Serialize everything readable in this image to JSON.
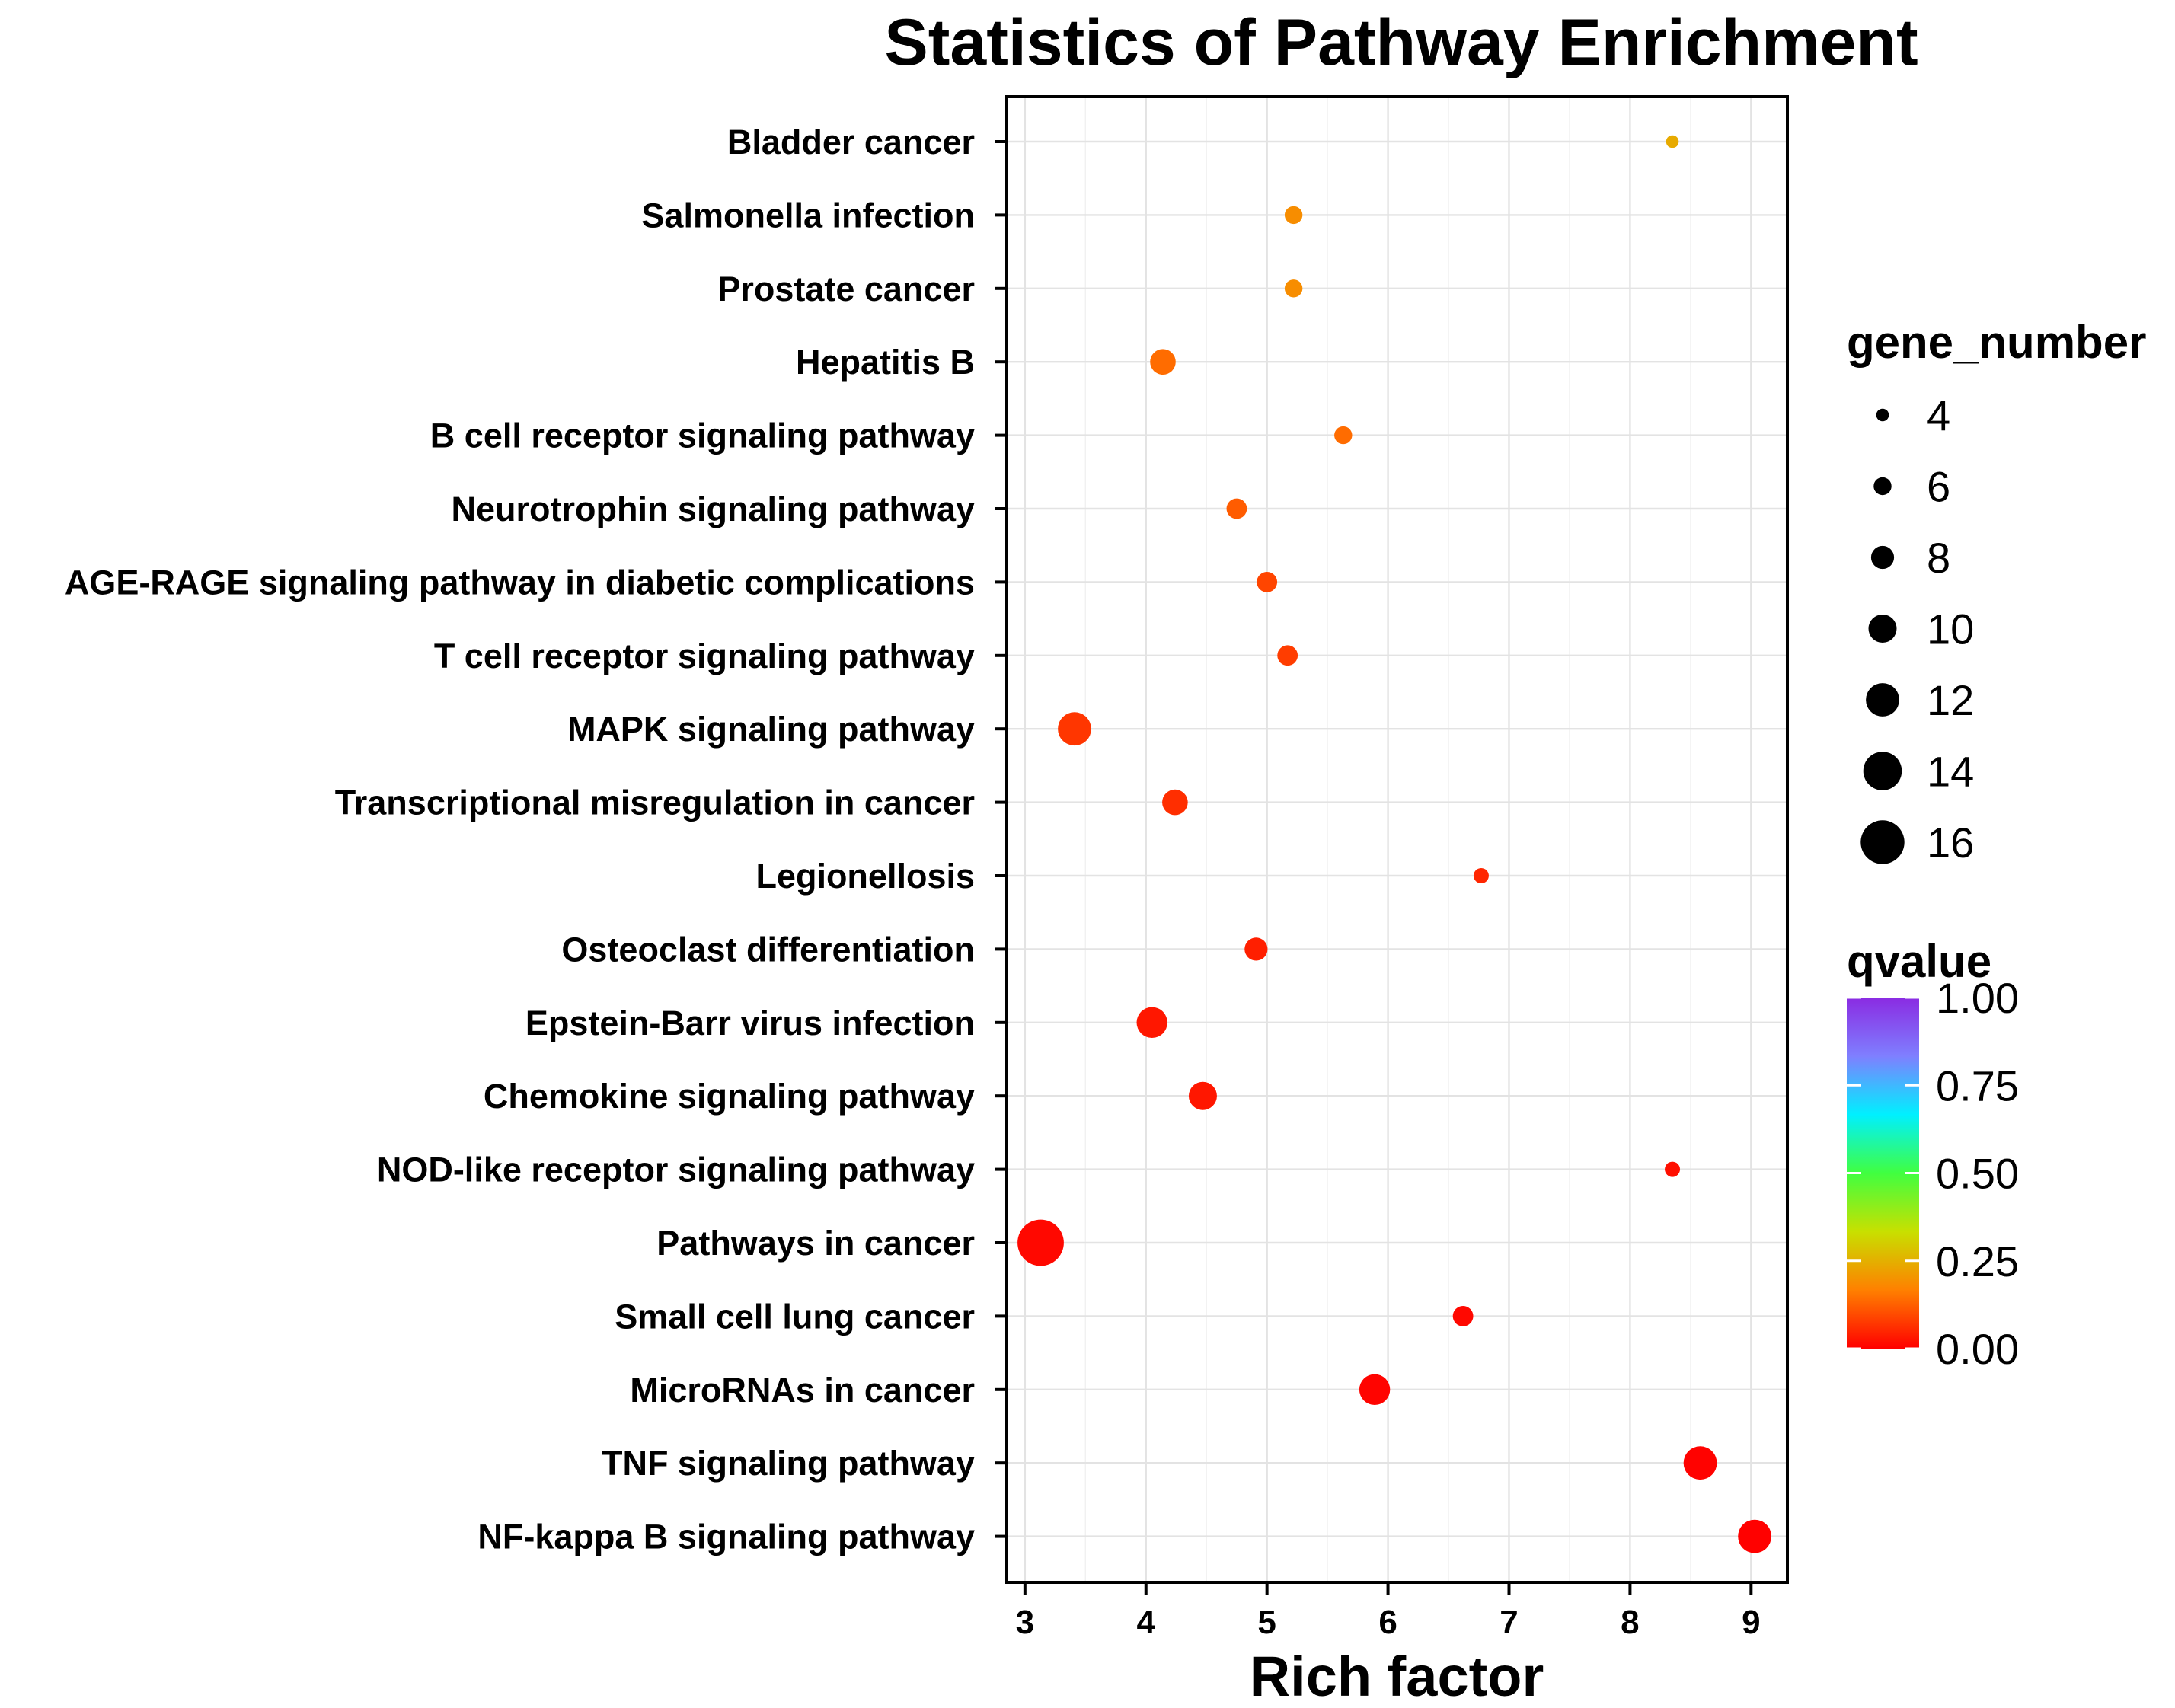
{
  "chart_data": {
    "type": "scatter",
    "title": "Statistics of Pathway Enrichment",
    "xlabel": "Rich factor",
    "ylabel": "",
    "xlim": [
      2.85,
      9.3
    ],
    "xticks": [
      3,
      4,
      5,
      6,
      7,
      8,
      9
    ],
    "grid": true,
    "categories": [
      "Bladder cancer",
      "Salmonella infection",
      "Prostate cancer",
      "Hepatitis B",
      "B cell receptor signaling pathway",
      "Neurotrophin signaling pathway",
      "AGE-RAGE signaling pathway in diabetic complications",
      "T cell receptor signaling pathway",
      "MAPK signaling pathway",
      "Transcriptional misregulation in cancer",
      "Legionellosis",
      "Osteoclast differentiation",
      "Epstein-Barr virus infection",
      "Chemokine signaling pathway",
      "NOD-like receptor signaling pathway",
      "Pathways in cancer",
      "Small cell lung cancer",
      "MicroRNAs in cancer",
      "TNF signaling pathway",
      "NF-kappa B signaling pathway"
    ],
    "points": [
      {
        "pathway": "Bladder cancer",
        "rich_factor": 8.35,
        "gene_number": 4,
        "qvalue": 0.24
      },
      {
        "pathway": "Salmonella infection",
        "rich_factor": 5.22,
        "gene_number": 6,
        "qvalue": 0.19
      },
      {
        "pathway": "Prostate cancer",
        "rich_factor": 5.22,
        "gene_number": 6,
        "qvalue": 0.19
      },
      {
        "pathway": "Hepatitis B",
        "rich_factor": 4.14,
        "gene_number": 9,
        "qvalue": 0.14
      },
      {
        "pathway": "B cell receptor signaling pathway",
        "rich_factor": 5.63,
        "gene_number": 6,
        "qvalue": 0.14
      },
      {
        "pathway": "Neurotrophin signaling pathway",
        "rich_factor": 4.75,
        "gene_number": 7,
        "qvalue": 0.12
      },
      {
        "pathway": "AGE-RAGE signaling pathway in diabetic complications",
        "rich_factor": 5.0,
        "gene_number": 7,
        "qvalue": 0.09
      },
      {
        "pathway": "T cell receptor signaling pathway",
        "rich_factor": 5.17,
        "gene_number": 7,
        "qvalue": 0.08
      },
      {
        "pathway": "MAPK signaling pathway",
        "rich_factor": 3.41,
        "gene_number": 12,
        "qvalue": 0.07
      },
      {
        "pathway": "Transcriptional misregulation in cancer",
        "rich_factor": 4.24,
        "gene_number": 9,
        "qvalue": 0.06
      },
      {
        "pathway": "Legionellosis",
        "rich_factor": 6.77,
        "gene_number": 5,
        "qvalue": 0.05
      },
      {
        "pathway": "Osteoclast differentiation",
        "rich_factor": 4.91,
        "gene_number": 8,
        "qvalue": 0.04
      },
      {
        "pathway": "Epstein-Barr virus infection",
        "rich_factor": 4.05,
        "gene_number": 11,
        "qvalue": 0.03
      },
      {
        "pathway": "Chemokine signaling pathway",
        "rich_factor": 4.47,
        "gene_number": 10,
        "qvalue": 0.03
      },
      {
        "pathway": "NOD-like receptor signaling pathway",
        "rich_factor": 8.35,
        "gene_number": 5,
        "qvalue": 0.02
      },
      {
        "pathway": "Pathways in cancer",
        "rich_factor": 3.13,
        "gene_number": 17,
        "qvalue": 0.01
      },
      {
        "pathway": "Small cell lung cancer",
        "rich_factor": 6.62,
        "gene_number": 7,
        "qvalue": 0.01
      },
      {
        "pathway": "MicroRNAs in cancer",
        "rich_factor": 5.89,
        "gene_number": 11,
        "qvalue": 0.005
      },
      {
        "pathway": "TNF signaling pathway",
        "rich_factor": 8.58,
        "gene_number": 12,
        "qvalue": 0.003
      },
      {
        "pathway": "NF-kappa B signaling pathway",
        "rich_factor": 9.03,
        "gene_number": 12,
        "qvalue": 0.001
      }
    ],
    "size_legend": {
      "title": "gene_number",
      "values": [
        4,
        6,
        8,
        10,
        12,
        14,
        16
      ]
    },
    "color_legend": {
      "title": "qvalue",
      "range": [
        0,
        1
      ],
      "ticks": [
        {
          "value": 1.0,
          "label": "1.00"
        },
        {
          "value": 0.75,
          "label": "0.75"
        },
        {
          "value": 0.5,
          "label": "0.50"
        },
        {
          "value": 0.25,
          "label": "0.25"
        },
        {
          "value": 0.0,
          "label": "0.00"
        }
      ],
      "colors": [
        "#ff0000",
        "#ff8000",
        "#c8e000",
        "#40ff40",
        "#00f0ff",
        "#7f7fff",
        "#8a2be2"
      ]
    }
  }
}
